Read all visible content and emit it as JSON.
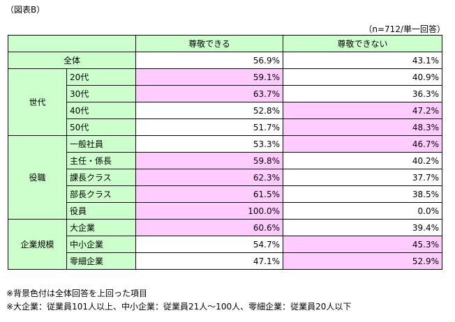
{
  "caption": "（図表B）",
  "sample_note": "（n=712/単一回答）",
  "highlight_color": "#ffccff",
  "label_color": "#ccffcc",
  "columns": {
    "respect": "尊敬できる",
    "no_respect": "尊敬できない"
  },
  "total": {
    "label": "全体",
    "respect": "56.9%",
    "no_respect": "43.1%"
  },
  "groups": [
    {
      "label": "世代",
      "rows": [
        {
          "label": "20代",
          "respect": "59.1%",
          "no_respect": "40.9%",
          "highlight": "respect"
        },
        {
          "label": "30代",
          "respect": "63.7%",
          "no_respect": "36.3%",
          "highlight": "respect"
        },
        {
          "label": "40代",
          "respect": "52.8%",
          "no_respect": "47.2%",
          "highlight": "no_respect"
        },
        {
          "label": "50代",
          "respect": "51.7%",
          "no_respect": "48.3%",
          "highlight": "no_respect"
        }
      ]
    },
    {
      "label": "役職",
      "rows": [
        {
          "label": "一般社員",
          "respect": "53.3%",
          "no_respect": "46.7%",
          "highlight": "no_respect"
        },
        {
          "label": "主任・係長",
          "respect": "59.8%",
          "no_respect": "40.2%",
          "highlight": "respect"
        },
        {
          "label": "課長クラス",
          "respect": "62.3%",
          "no_respect": "37.7%",
          "highlight": "respect"
        },
        {
          "label": "部長クラス",
          "respect": "61.5%",
          "no_respect": "38.5%",
          "highlight": "respect"
        },
        {
          "label": "役員",
          "respect": "100.0%",
          "no_respect": "0.0%",
          "highlight": "respect"
        }
      ]
    },
    {
      "label": "企業規模",
      "rows": [
        {
          "label": "大企業",
          "respect": "60.6%",
          "no_respect": "39.4%",
          "highlight": "respect"
        },
        {
          "label": "中小企業",
          "respect": "54.7%",
          "no_respect": "45.3%",
          "highlight": "no_respect"
        },
        {
          "label": "零細企業",
          "respect": "47.1%",
          "no_respect": "52.9%",
          "highlight": "no_respect"
        }
      ]
    }
  ],
  "notes": [
    "※背景色付は全体回答を上回った項目",
    "※大企業：従業員101人以上、中小企業：従業員21人～100人、零細企業：従業員20人以下"
  ]
}
